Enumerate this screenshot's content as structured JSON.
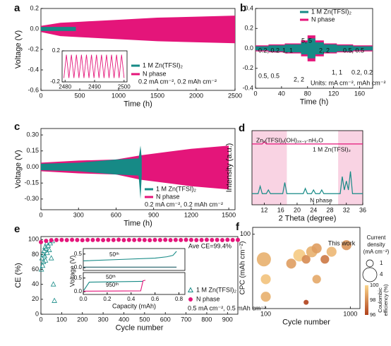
{
  "chart_data": [
    {
      "panel": "a",
      "type": "band",
      "xlabel": "Time (h)",
      "ylabel": "Voltage (V)",
      "xlim": [
        0,
        2500
      ],
      "xticks": [
        0,
        500,
        1000,
        1500,
        2000,
        2500
      ],
      "ylim": [
        -0.6,
        0.2
      ],
      "yticks": [
        -0.6,
        -0.4,
        -0.2,
        {
          "value": 0,
          "label": "0.0"
        },
        0.2
      ],
      "series": [
        {
          "name": "1 M Zn(TFSI)₂",
          "color": "#168a86",
          "x": [
            0,
            450
          ],
          "values": [
            0.02,
            0.02
          ],
          "low": [
            -0.02,
            -0.02
          ]
        },
        {
          "name": "N phase",
          "color": "#e4157a",
          "x": [
            0,
            250,
            500,
            1000,
            1500,
            2000,
            2500
          ],
          "values": [
            0.03,
            0.06,
            0.07,
            0.09,
            0.11,
            0.12,
            0.13
          ],
          "low": [
            -0.03,
            -0.07,
            -0.08,
            -0.1,
            -0.12,
            -0.13,
            -0.14
          ]
        }
      ],
      "annotations": [
        "0.2 mA cm⁻², 0.2 mAh cm⁻²"
      ],
      "inset": {
        "xlim": [
          2479,
          2501
        ],
        "xticks": [
          2480,
          2490,
          2500
        ],
        "ylim": [
          -0.2,
          0.2
        ],
        "yticks": [
          -0.2,
          0.2
        ],
        "color": "#e4157a",
        "x": [
          2479.6,
          2480.45,
          2481.3,
          2482.15,
          2483.0,
          2483.85,
          2484.7,
          2485.55,
          2486.4,
          2487.25,
          2488.1,
          2488.95,
          2489.8,
          2490.65,
          2491.5,
          2492.35,
          2493.2,
          2494.05,
          2494.9,
          2495.75,
          2496.6,
          2497.45,
          2498.3,
          2499.15,
          2500.0
        ],
        "values": [
          -0.15,
          0.15,
          -0.15,
          0.15,
          -0.15,
          0.15,
          -0.15,
          0.15,
          -0.15,
          0.15,
          -0.15,
          0.15,
          -0.15,
          0.15,
          -0.15,
          0.15,
          -0.15,
          0.15,
          -0.15,
          0.15,
          -0.15,
          0.15,
          -0.15,
          0.15,
          -0.15
        ]
      }
    },
    {
      "panel": "b",
      "type": "band",
      "xlabel": "Time (h)",
      "xlim": [
        0,
        180
      ],
      "xticks": [
        0,
        40,
        80,
        120,
        160
      ],
      "ylim": [
        -0.4,
        0.4
      ],
      "yticks": [
        -0.4,
        -0.2,
        {
          "value": 0,
          "label": "0.0"
        },
        0.2,
        0.4
      ],
      "series": [
        {
          "name": "1 M Zn(TFSI)₂",
          "color": "#168a86",
          "x": [
            0,
            20,
            20,
            45,
            45,
            70,
            70,
            80,
            80,
            92,
            92,
            105,
            105,
            125,
            125,
            150,
            150,
            180
          ],
          "values": [
            0.02,
            0.02,
            0.03,
            0.03,
            0.04,
            0.04,
            0.06,
            0.06,
            0.1,
            0.1,
            0.06,
            0.06,
            0.04,
            0.04,
            0.03,
            0.03,
            0.02,
            0.02
          ],
          "low": [
            -0.02,
            -0.02,
            -0.03,
            -0.03,
            -0.04,
            -0.04,
            -0.06,
            -0.06,
            -0.1,
            -0.1,
            -0.06,
            -0.06,
            -0.04,
            -0.04,
            -0.03,
            -0.03,
            -0.02,
            -0.02
          ]
        },
        {
          "name": "N phase",
          "color": "#e4157a",
          "x": [
            0,
            20,
            20,
            45,
            45,
            70,
            70,
            80,
            80,
            92,
            92,
            105,
            105,
            125,
            125,
            150,
            150,
            180
          ],
          "values": [
            0.03,
            0.03,
            0.04,
            0.04,
            0.05,
            0.05,
            0.08,
            0.08,
            0.13,
            0.13,
            0.08,
            0.08,
            0.05,
            0.05,
            0.04,
            0.04,
            0.03,
            0.03
          ],
          "low": [
            -0.03,
            -0.03,
            -0.04,
            -0.04,
            -0.05,
            -0.05,
            -0.08,
            -0.08,
            -0.13,
            -0.13,
            -0.08,
            -0.08,
            -0.05,
            -0.05,
            -0.04,
            -0.04,
            -0.03,
            -0.03
          ]
        }
      ],
      "annotations": [
        "0.2, 0.2",
        "1, 1",
        "5, 5",
        "2, 2",
        "0.5, 0.5",
        "0.5, 0.5",
        "2, 2",
        "1, 1",
        "0.2, 0.2",
        "Units: mA cm⁻², mAh cm⁻²"
      ]
    },
    {
      "panel": "c",
      "type": "band",
      "xlabel": "Time (h)",
      "ylabel": "Voltage (V)",
      "xlim": [
        0,
        1550
      ],
      "xticks": [
        0,
        300,
        600,
        900,
        1200,
        1500
      ],
      "ylim": [
        -0.4,
        0.36
      ],
      "yticks": [
        {
          "value": -0.3,
          "label": "-0.30"
        },
        {
          "value": -0.15,
          "label": "-0.15"
        },
        {
          "value": 0,
          "label": "0.00"
        },
        {
          "value": 0.15,
          "label": "0.15"
        },
        {
          "value": 0.3,
          "label": "0.30"
        }
      ],
      "series": [
        {
          "name": "1 M Zn(TFSI)₂",
          "color": "#168a86",
          "x": [
            0,
            300,
            600,
            780,
            795,
            805
          ],
          "values": [
            0.03,
            0.04,
            0.07,
            0.08,
            0.2,
            0.08
          ],
          "low": [
            -0.03,
            -0.04,
            -0.07,
            -0.08,
            -0.3,
            -0.08
          ]
        },
        {
          "name": "N phase",
          "color": "#e4157a",
          "x": [
            0,
            300,
            600,
            800,
            1000,
            1200,
            1500
          ],
          "values": [
            0.04,
            0.06,
            0.07,
            0.11,
            0.14,
            0.17,
            0.2
          ],
          "low": [
            -0.04,
            -0.06,
            -0.07,
            -0.12,
            -0.15,
            -0.18,
            -0.21
          ]
        }
      ],
      "annotations": [
        "0.2 mA cm⁻², 0.2 mAh cm⁻²"
      ]
    },
    {
      "panel": "d",
      "type": "line",
      "xlabel": "2 Theta (degree)",
      "ylabel": "Intensity (a.u.)",
      "xlim": [
        9,
        36
      ],
      "xticks": [
        12,
        16,
        20,
        24,
        28,
        32,
        36
      ],
      "ylim": [
        0,
        1
      ],
      "shaded": [
        [
          9,
          17.5
        ],
        [
          30,
          36
        ]
      ],
      "shade_color": "#f9d3e3",
      "series": [
        {
          "name": "1 M Zn(TFSI)₂",
          "color": "#168a86",
          "x": [
            9,
            10.5,
            11,
            11.5,
            12.5,
            13,
            13.5,
            16.5,
            17,
            17.5,
            21.5,
            22,
            22.5,
            23.5,
            24,
            24.5,
            25.5,
            26,
            26.5,
            30.5,
            31,
            31.5,
            32,
            32.5,
            33,
            33.5,
            36
          ],
          "values": [
            0.15,
            0.15,
            0.25,
            0.15,
            0.15,
            0.2,
            0.15,
            0.15,
            0.3,
            0.15,
            0.15,
            0.22,
            0.15,
            0.15,
            0.2,
            0.15,
            0.15,
            0.2,
            0.15,
            0.15,
            0.38,
            0.2,
            0.32,
            0.2,
            0.45,
            0.15,
            0.15
          ]
        },
        {
          "name": "N phase",
          "color": "#e4157a",
          "x": [
            9,
            11.5,
            12,
            12.5,
            36
          ],
          "values": [
            0.82,
            0.82,
            0.85,
            0.82,
            0.82
          ]
        }
      ],
      "annotations": [
        "Znₓ(TFSI)ᵧ(OH)₂ₓ₋ᵧ·nH₂O"
      ]
    },
    {
      "panel": "e",
      "type": "scatter",
      "xlabel": "Cycle number",
      "ylabel": "CE (%)",
      "xlim": [
        0,
        950
      ],
      "xticks": [
        0,
        100,
        200,
        300,
        400,
        500,
        600,
        700,
        800,
        900
      ],
      "ylim": [
        0,
        104
      ],
      "yticks": [
        0,
        20,
        40,
        60,
        80,
        100
      ],
      "series": [
        {
          "name": "1 M Zn(TFSI)₂",
          "color": "#168a86",
          "marker": "triangle",
          "x": [
            2,
            5,
            8,
            10,
            12,
            15,
            18,
            20,
            22,
            25,
            28,
            30,
            35,
            40,
            45,
            50,
            55,
            60,
            65
          ],
          "values": [
            60,
            75,
            65,
            80,
            70,
            85,
            78,
            90,
            72,
            88,
            95,
            82,
            92,
            86,
            95,
            75,
            98,
            40,
            18
          ]
        },
        {
          "name": "N phase",
          "color": "#e4157a",
          "marker": "circle",
          "x": [
            0,
            25,
            50,
            75,
            100,
            125,
            150,
            175,
            200,
            225,
            250,
            275,
            300,
            325,
            350,
            375,
            400,
            425,
            450,
            475,
            500,
            525,
            550,
            575,
            600,
            625,
            650,
            675,
            700,
            725,
            750,
            775,
            800,
            825,
            850,
            875,
            900,
            925,
            950
          ],
          "values": [
            96.5,
            98.2,
            99.1,
            99.4,
            99.5,
            99.3,
            99.6,
            99.4,
            99.2,
            99.5,
            99.4,
            99.6,
            99.3,
            99.5,
            99.4,
            99.7,
            99.3,
            99.5,
            99.4,
            99.6,
            99.4,
            99.2,
            99.5,
            99.4,
            99.6,
            99.3,
            99.5,
            99.4,
            99.6,
            99.5,
            99.3,
            99.4,
            99.6,
            99.4,
            99.5,
            99.3,
            99.6,
            99.4,
            99.5
          ]
        }
      ],
      "annotations": [
        "Ave CE=99.4%",
        "0.5 mA cm⁻², 0.5 mAh cm⁻²"
      ],
      "inset": {
        "xlim": [
          0,
          0.85
        ],
        "xticks": [
          {
            "value": 0,
            "label": "0.0"
          },
          0.2,
          0.4,
          0.6,
          0.8
        ],
        "xlabel": "Capacity (mAh)",
        "ylabel": "Voltage (V)",
        "panels": [
          {
            "ylim": [
              -0.1,
              0.7
            ],
            "yticks": [
              {
                "value": 0,
                "label": "0.0"
              },
              0.5
            ],
            "labels": [
              "50ᵗʰ"
            ],
            "series": [
              {
                "color": "#168a86",
                "x": [
                  0,
                  0.3,
                  0.6,
                  0.7,
                  0.75,
                  0.78
                ],
                "values": [
                  0.25,
                  0.3,
                  0.35,
                  0.4,
                  0.45,
                  0.6
                ]
              },
              {
                "color": "#1d5b66",
                "x": [
                  0,
                  0.78
                ],
                "values": [
                  0.02,
                  0.02
                ]
              }
            ]
          },
          {
            "ylim": [
              -0.1,
              0.7
            ],
            "yticks": [
              {
                "value": 0,
                "label": "0.0"
              },
              0.5
            ],
            "labels": [
              "50ᵗʰ",
              "950ᵗʰ"
            ],
            "series": [
              {
                "color": "#168a86",
                "x": [
                  0,
                  0.05,
                  0.5
                ],
                "values": [
                  0.02,
                  0.35,
                  0.38
                ]
              },
              {
                "color": "#e4157a",
                "x": [
                  0,
                  0.48,
                  0.5,
                  0.52
                ],
                "values": [
                  0.02,
                  0.03,
                  0.4,
                  0.42
                ]
              }
            ]
          }
        ]
      }
    },
    {
      "panel": "f",
      "type": "bubble",
      "xlabel": "Cycle number",
      "ylabel": "CPC (mAh cm⁻²)",
      "xlog": true,
      "ylog": true,
      "xlim": [
        70,
        1300
      ],
      "xticks": [
        100,
        1000
      ],
      "ylim": [
        22,
        115
      ],
      "yticks": [
        100
      ],
      "x": [
        95,
        100,
        100,
        200,
        250,
        300,
        350,
        400,
        500,
        600,
        400,
        300,
        900
      ],
      "y": [
        60,
        40,
        28,
        55,
        65,
        60,
        70,
        75,
        60,
        70,
        40,
        25,
        80
      ],
      "size": [
        4,
        2,
        2,
        2,
        3,
        1.5,
        2.5,
        2,
        1.5,
        2,
        1.5,
        0.5,
        2
      ],
      "ce": [
        99,
        99.5,
        99,
        98.5,
        99.7,
        98,
        99,
        98.5,
        97.5,
        99.2,
        98.8,
        96,
        98.3
      ],
      "colormap": [
        "#b0401a",
        "#fbd58a"
      ],
      "annotations": [
        "This work"
      ],
      "size_legend": {
        "title": [
          "Current",
          "density",
          "(mA cm⁻²)"
        ],
        "sizes": [
          1,
          4
        ]
      },
      "colorbar": {
        "lim": [
          96,
          100
        ],
        "ticks": [
          96,
          98,
          100
        ],
        "label": [
          "Coulombic",
          "efficiency (%)"
        ]
      }
    }
  ]
}
